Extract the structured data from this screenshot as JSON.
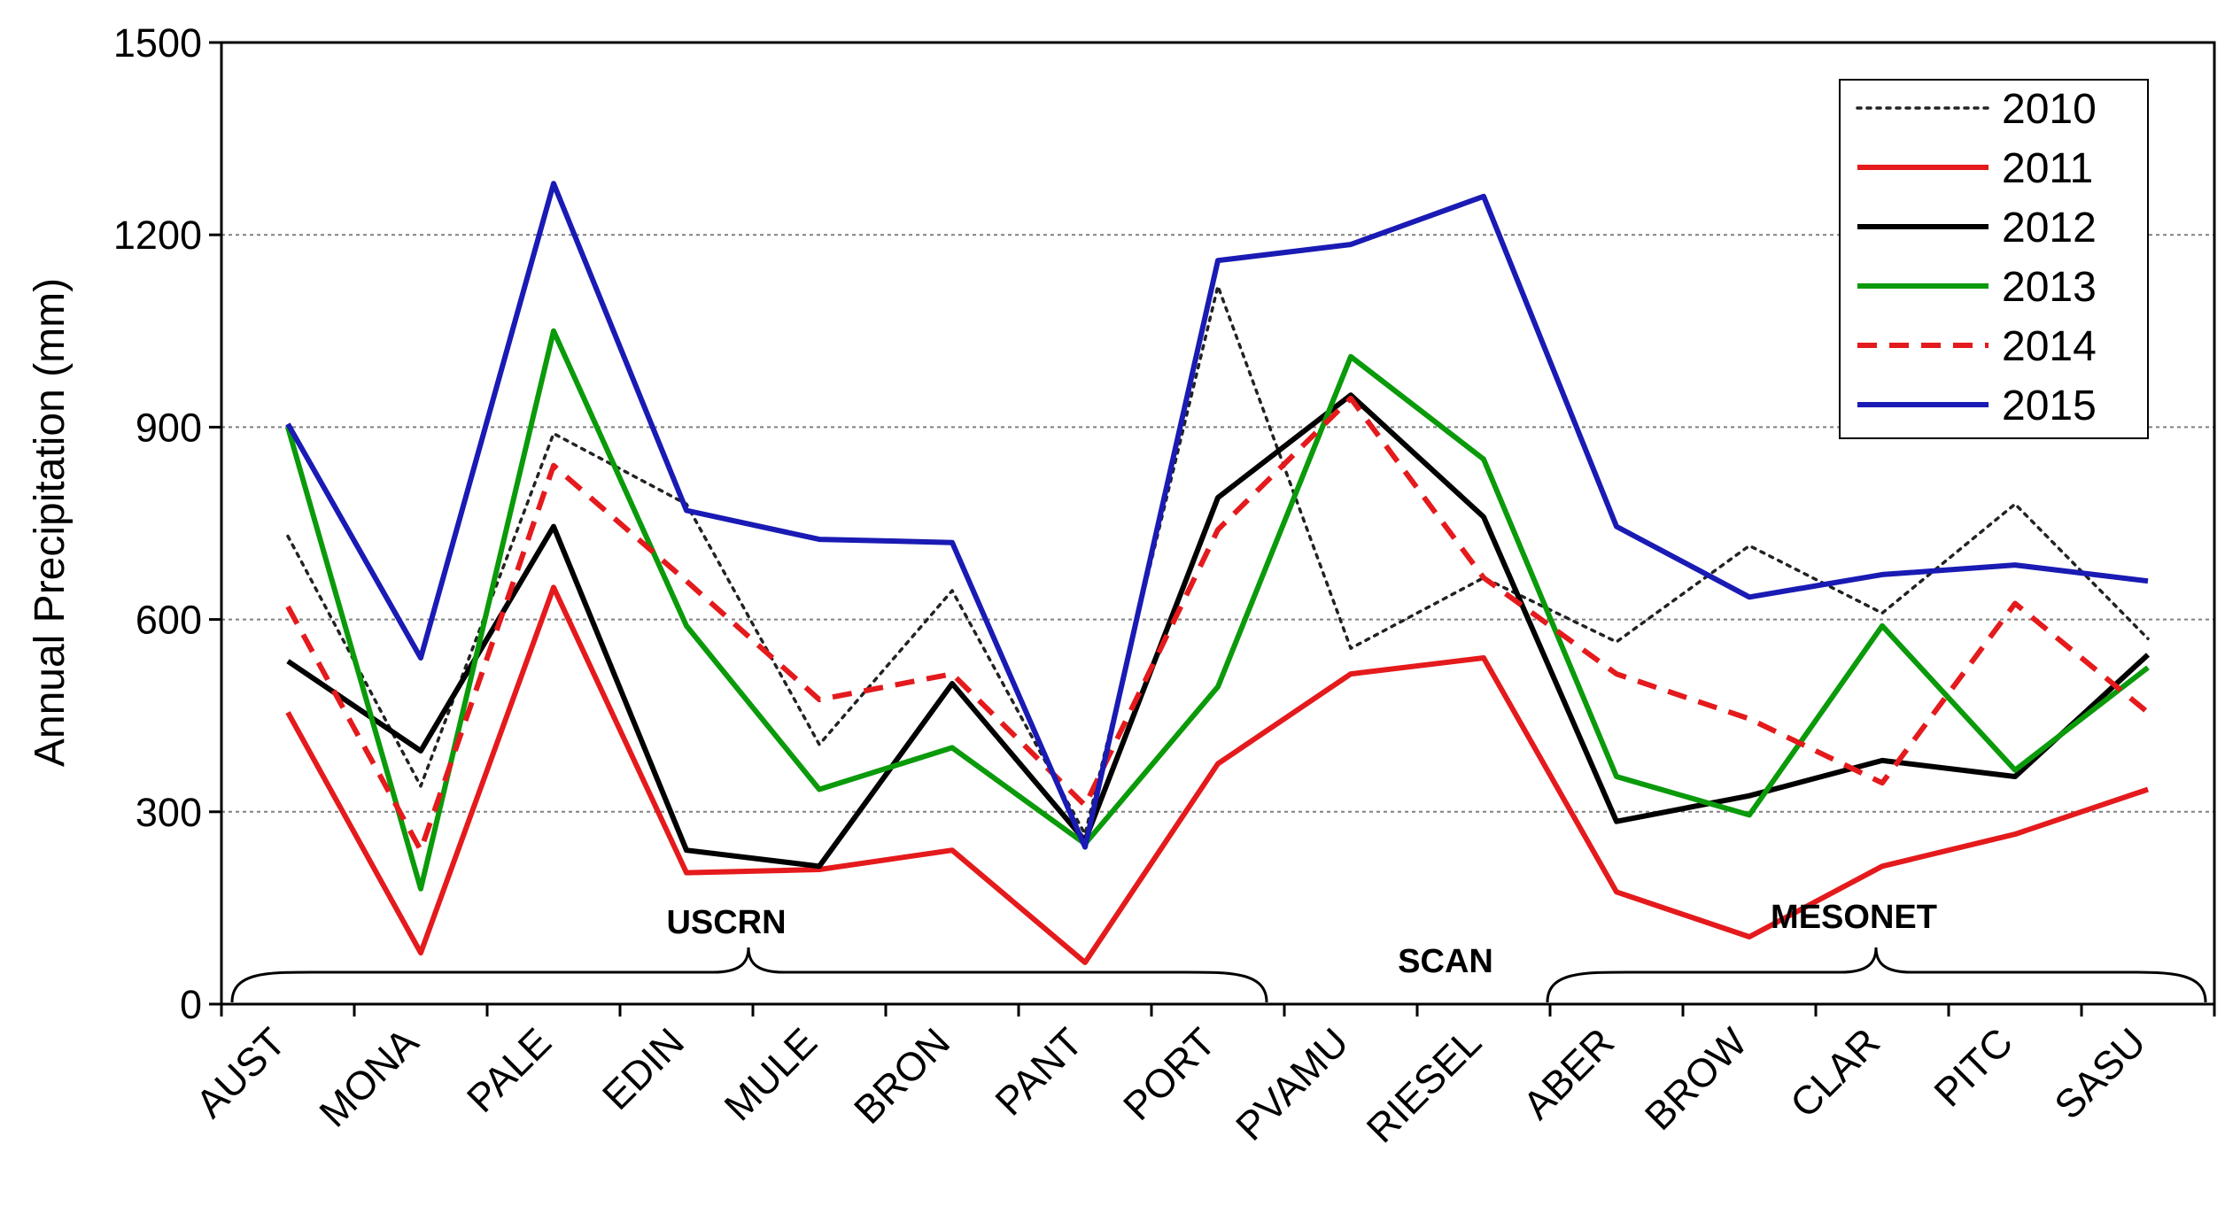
{
  "chart_data": {
    "type": "line",
    "title": "",
    "xlabel": "",
    "ylabel": "Annual Precipitation (mm)",
    "ylim": [
      0,
      1500
    ],
    "yticks": [
      0,
      300,
      600,
      900,
      1200,
      1500
    ],
    "grid": "horizontal dotted",
    "legend_position": "top-right",
    "categories": [
      "AUST",
      "MONA",
      "PALE",
      "EDIN",
      "MULE",
      "BRON",
      "PANT",
      "PORT",
      "PVAMU",
      "RIESEL",
      "ABER",
      "BROW",
      "CLAR",
      "PITC",
      "SASU"
    ],
    "series": [
      {
        "name": "2010",
        "color": "#222222",
        "style": "dotted",
        "values": [
          730,
          340,
          890,
          780,
          405,
          645,
          265,
          1120,
          555,
          665,
          565,
          715,
          610,
          780,
          570
        ]
      },
      {
        "name": "2011",
        "color": "#e41a1c",
        "style": "solid",
        "values": [
          455,
          80,
          650,
          205,
          210,
          240,
          65,
          375,
          515,
          540,
          175,
          105,
          215,
          265,
          335
        ]
      },
      {
        "name": "2012",
        "color": "#000000",
        "style": "solid",
        "values": [
          535,
          395,
          745,
          240,
          215,
          500,
          255,
          790,
          950,
          760,
          285,
          325,
          380,
          355,
          545
        ]
      },
      {
        "name": "2013",
        "color": "#0a9a0a",
        "style": "solid",
        "values": [
          900,
          180,
          1050,
          590,
          335,
          400,
          250,
          495,
          1010,
          850,
          355,
          295,
          590,
          365,
          525
        ]
      },
      {
        "name": "2014",
        "color": "#e41a1c",
        "style": "dashed",
        "values": [
          620,
          240,
          840,
          660,
          475,
          515,
          310,
          740,
          945,
          665,
          515,
          445,
          345,
          625,
          455
        ]
      },
      {
        "name": "2015",
        "color": "#1a1ab4",
        "style": "solid",
        "values": [
          905,
          540,
          1280,
          770,
          725,
          720,
          245,
          1160,
          1185,
          1260,
          745,
          635,
          670,
          685,
          660
        ]
      }
    ],
    "groups": [
      {
        "label": "USCRN"
      },
      {
        "label": "SCAN"
      },
      {
        "label": "MESONET"
      }
    ]
  }
}
